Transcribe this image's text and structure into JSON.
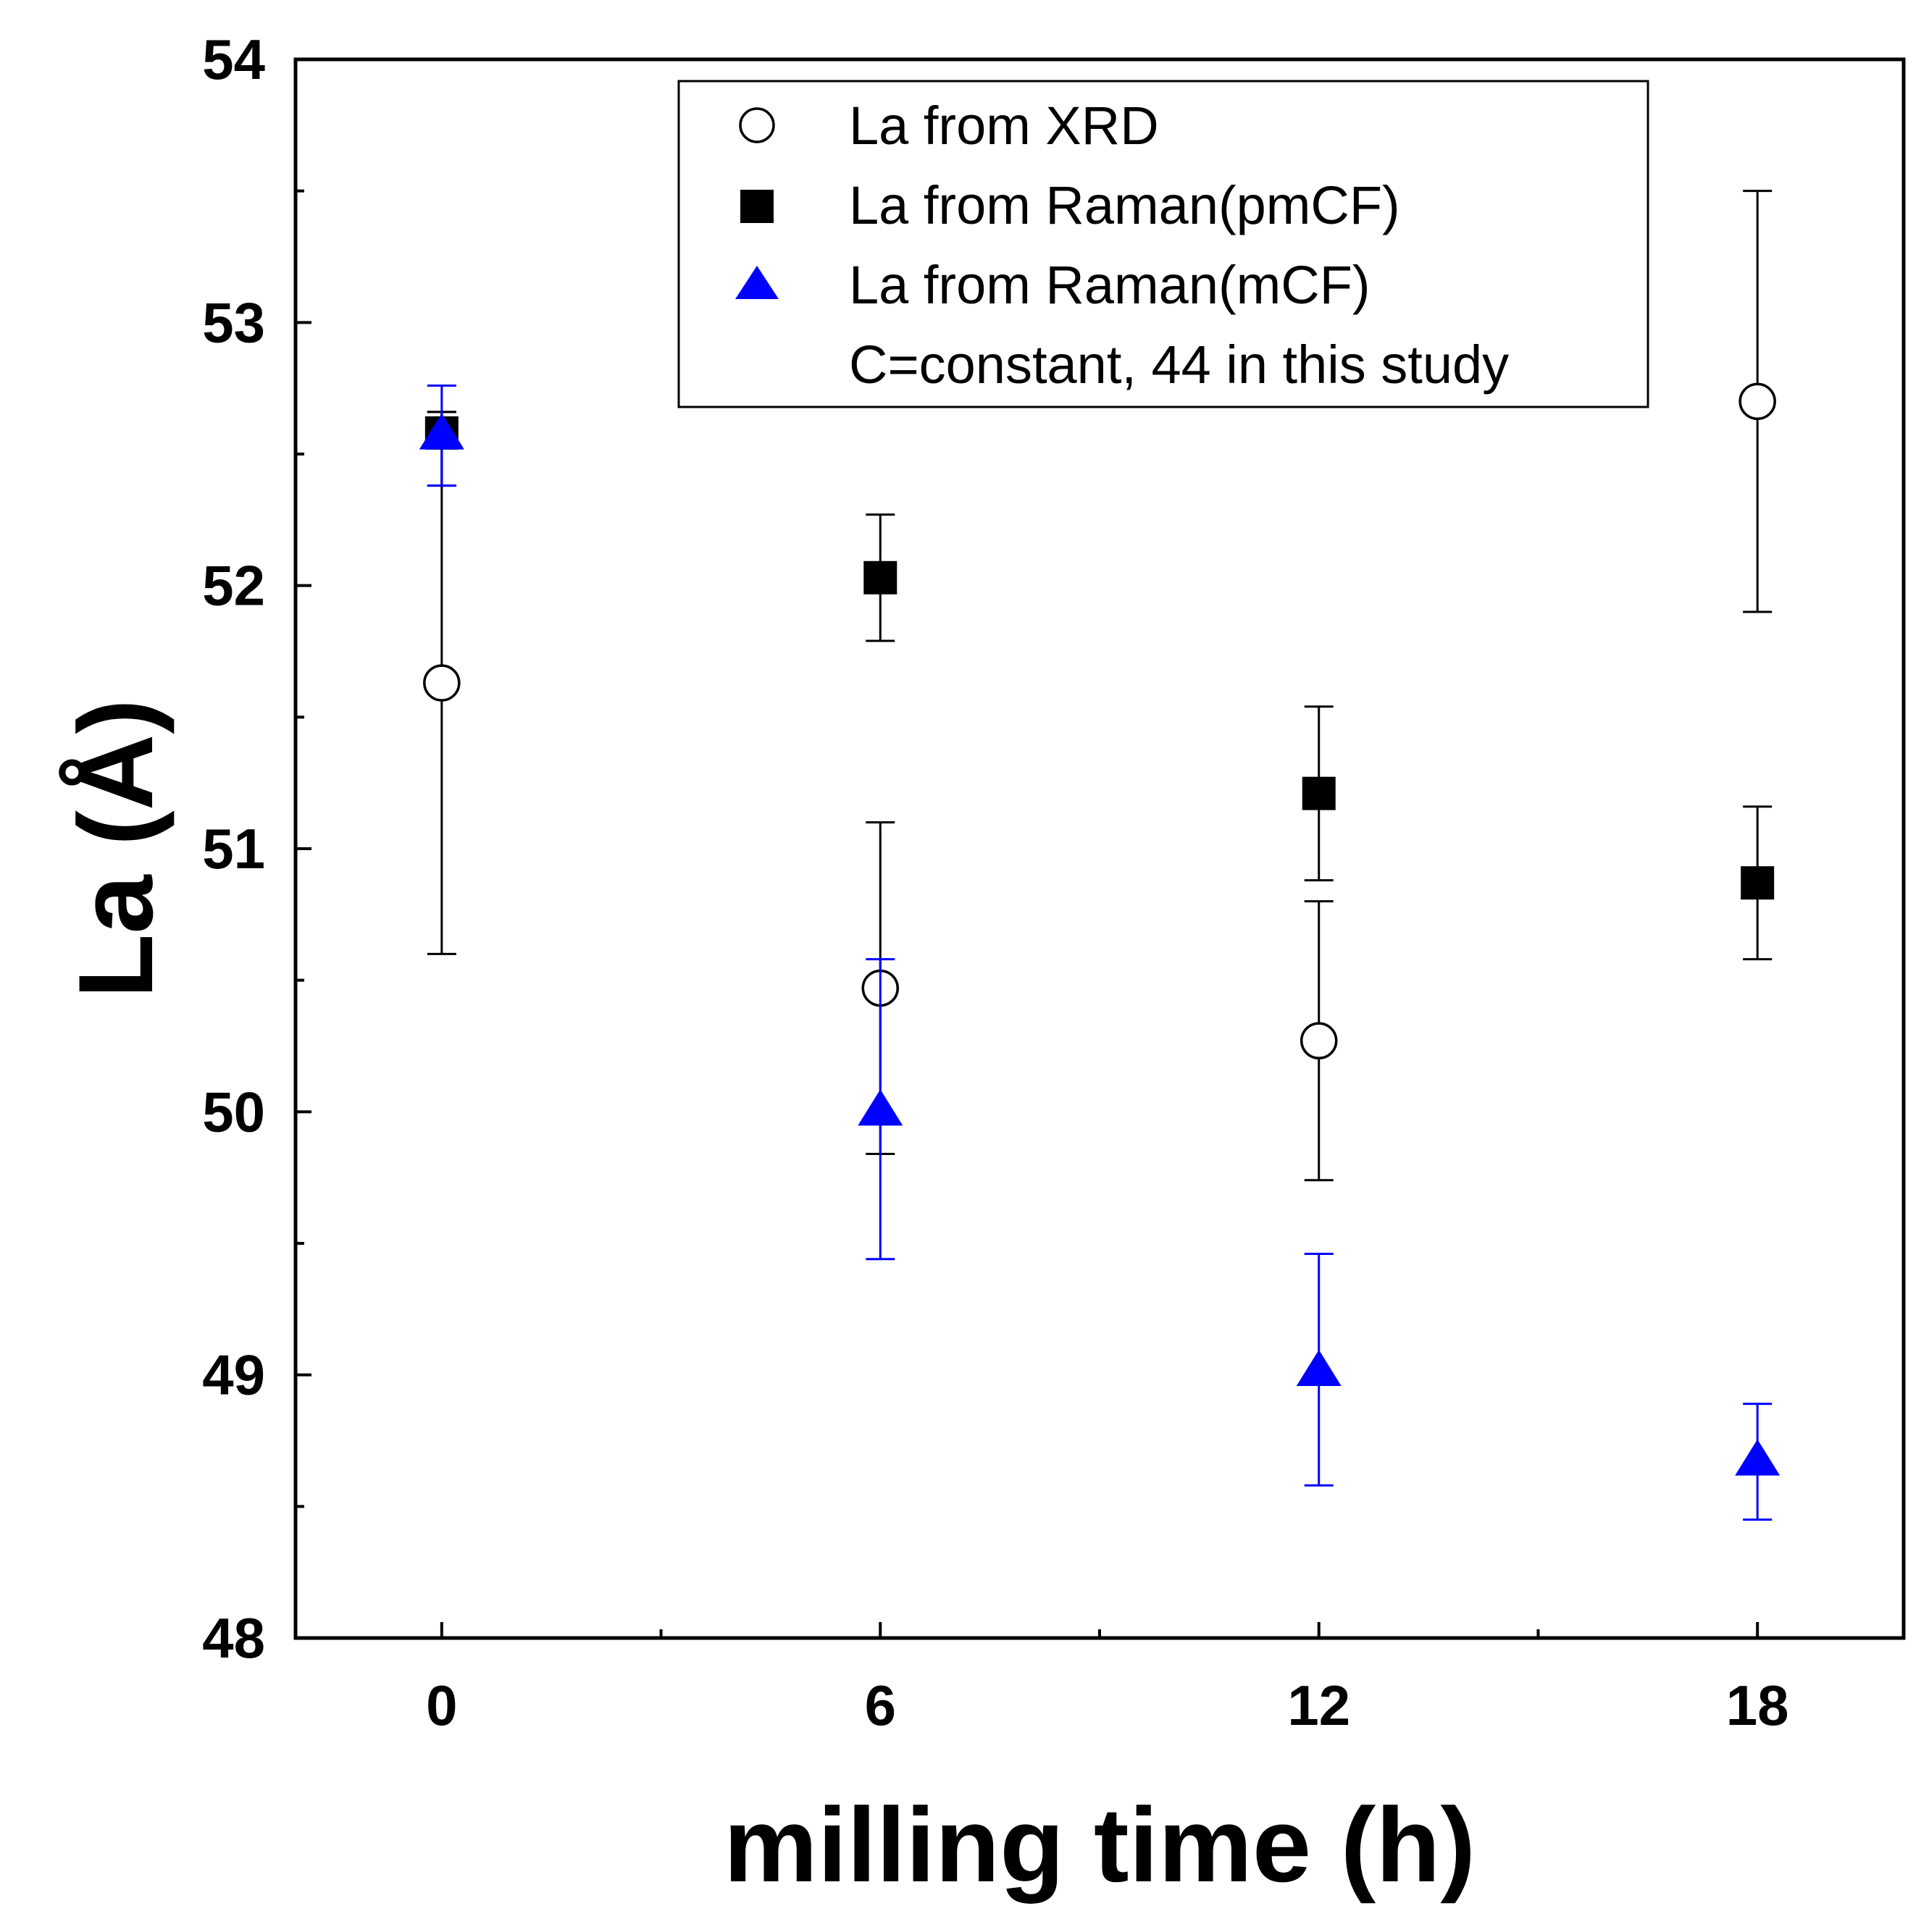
{
  "chart_data": {
    "type": "scatter",
    "title": "",
    "xlabel": "milling time (h)",
    "ylabel": "La (Å)",
    "xlim": [
      -2,
      20
    ],
    "ylim": [
      48,
      54
    ],
    "xticks": [
      0,
      6,
      12,
      18
    ],
    "xtick_labels": [
      "0",
      "6",
      "12",
      "18"
    ],
    "yticks": [
      48,
      49,
      50,
      51,
      52,
      53,
      54
    ],
    "ytick_labels": [
      "48",
      "49",
      "50",
      "51",
      "52",
      "53",
      "54"
    ],
    "grid": false,
    "legend_position": "top-right",
    "legend_note": "C=constant, 44 in this study",
    "series": [
      {
        "name": "La from XRD",
        "marker": "open-circle",
        "color": "#000000",
        "x": [
          0,
          6,
          12,
          18
        ],
        "y": [
          51.63,
          50.47,
          50.27,
          52.7
        ],
        "err_low": [
          50.6,
          49.84,
          49.74,
          51.9
        ],
        "err_high": [
          52.66,
          51.1,
          50.8,
          53.5
        ]
      },
      {
        "name": "La from Raman(pmCF)",
        "marker": "filled-square",
        "color": "#000000",
        "x": [
          0,
          6,
          12,
          18
        ],
        "y": [
          52.58,
          52.03,
          51.21,
          50.87
        ],
        "err_low": [
          52.38,
          51.79,
          50.88,
          50.58
        ],
        "err_high": [
          52.66,
          52.27,
          51.54,
          51.16
        ]
      },
      {
        "name": "La from Raman(mCF)",
        "marker": "filled-triangle",
        "color": "#0000ff",
        "x": [
          0,
          6,
          12,
          18
        ],
        "y": [
          52.57,
          50.0,
          49.01,
          48.67
        ],
        "err_low": [
          52.38,
          49.44,
          48.58,
          48.45
        ],
        "err_high": [
          52.76,
          50.58,
          49.46,
          48.89
        ]
      }
    ]
  }
}
